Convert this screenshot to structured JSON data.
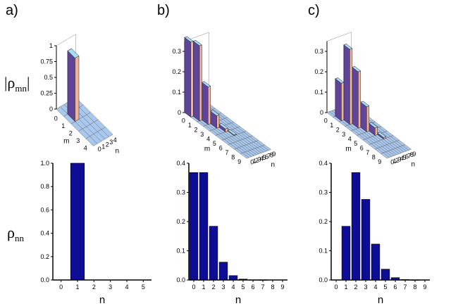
{
  "panels": [
    "a)",
    "b)",
    "c)"
  ],
  "top_ylabel": {
    "main": "|ρ",
    "sub": "mn",
    "close": "|"
  },
  "bottom_ylabel": {
    "main": "ρ",
    "sub": "nn"
  },
  "colors": {
    "bar": "#0d0d96",
    "bar_edge": "#000000",
    "surface": "#a8c8f0",
    "column_top": "#a8dcf2",
    "column_side_light": "#f2b39a",
    "column_side_dark": "#7050b4",
    "grid_line": "#6a6a6a"
  },
  "chart_data": [
    {
      "panel": "a)",
      "type": "3d-bar",
      "xlabel": "m",
      "ylabel": "n",
      "ylim": [
        0,
        1
      ],
      "yticks": [
        "0",
        "0.25",
        "0.5",
        "0.75",
        "1"
      ],
      "m_ticks": [
        "0",
        "1",
        "2",
        "3",
        "4"
      ],
      "n_ticks": [
        "0",
        "1",
        "2",
        "3",
        "4"
      ],
      "diagonal": [
        0,
        1,
        0,
        0,
        0
      ]
    },
    {
      "panel": "b)",
      "type": "3d-bar",
      "xlabel": "m",
      "ylabel": "n",
      "ylim": [
        0,
        0.35
      ],
      "yticks": [
        "0",
        "0.1",
        "0.2",
        "0.3"
      ],
      "m_ticks": [
        "0",
        "1",
        "2",
        "3",
        "4",
        "5",
        "6",
        "7",
        "8",
        "9"
      ],
      "n_ticks": [
        "0",
        "1",
        "2",
        "3",
        "4",
        "5",
        "6",
        "7",
        "8",
        "9"
      ],
      "diagonal": [
        0.368,
        0.368,
        0.184,
        0.061,
        0.015,
        0.003,
        0.0005,
        0.0001,
        0,
        0
      ]
    },
    {
      "panel": "c)",
      "type": "3d-bar",
      "xlabel": "m",
      "ylabel": "n",
      "ylim": [
        0,
        0.35
      ],
      "yticks": [
        "0",
        "0.1",
        "0.2",
        "0.3"
      ],
      "m_ticks": [
        "0",
        "1",
        "2",
        "3",
        "4",
        "5",
        "6",
        "7",
        "8",
        "9"
      ],
      "n_ticks": [
        "0",
        "1",
        "2",
        "3",
        "4",
        "5",
        "6",
        "7",
        "8",
        "9"
      ],
      "diagonal": [
        0,
        0.184,
        0.368,
        0.276,
        0.123,
        0.037,
        0.008,
        0.0015,
        0.0002,
        0
      ]
    },
    {
      "panel": "a)",
      "type": "bar",
      "xlabel": "n",
      "ylabel": "ρnn",
      "x": [
        1
      ],
      "values": [
        1.0
      ],
      "xlim": [
        -0.5,
        5.5
      ],
      "ylim": [
        0,
        1.0
      ],
      "xticks": [
        0,
        1,
        2,
        3,
        4,
        5
      ],
      "yticks": [
        "0.0",
        "0.2",
        "0.4",
        "0.6",
        "0.8",
        "1.0"
      ]
    },
    {
      "panel": "b)",
      "type": "bar",
      "xlabel": "n",
      "x": [
        0,
        1,
        2,
        3,
        4,
        5,
        6,
        7,
        8,
        9
      ],
      "values": [
        0.368,
        0.368,
        0.184,
        0.061,
        0.015,
        0.003,
        0.0005,
        0.0001,
        0,
        0
      ],
      "xlim": [
        -0.5,
        9.5
      ],
      "ylim": [
        0,
        0.4
      ],
      "xticks": [
        0,
        1,
        2,
        3,
        4,
        5,
        6,
        7,
        8,
        9
      ],
      "yticks": [
        "0.0",
        "0.1",
        "0.2",
        "0.3",
        "0.4"
      ]
    },
    {
      "panel": "c)",
      "type": "bar",
      "xlabel": "n",
      "x": [
        0,
        1,
        2,
        3,
        4,
        5,
        6,
        7,
        8,
        9
      ],
      "values": [
        0,
        0.184,
        0.368,
        0.276,
        0.123,
        0.037,
        0.008,
        0.0015,
        0.0002,
        0
      ],
      "xlim": [
        -0.5,
        9.5
      ],
      "ylim": [
        0,
        0.4
      ],
      "xticks": [
        0,
        1,
        2,
        3,
        4,
        5,
        6,
        7,
        8,
        9
      ],
      "yticks": [
        "0.0",
        "0.1",
        "0.2",
        "0.3",
        "0.4"
      ]
    }
  ]
}
